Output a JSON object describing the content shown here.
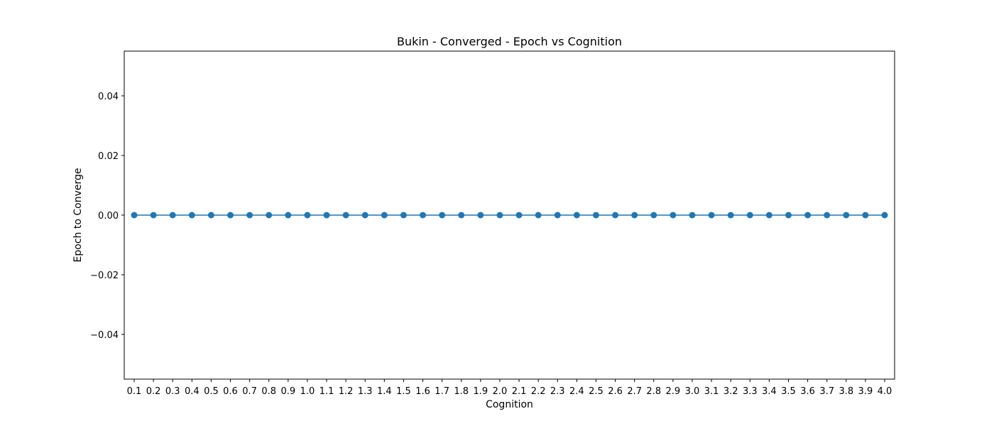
{
  "chart_data": {
    "type": "line",
    "title": "Bukin - Converged - Epoch vs Cognition",
    "xlabel": "Cognition",
    "ylabel": "Epoch to Converge",
    "x": [
      "0.1",
      "0.2",
      "0.3",
      "0.4",
      "0.5",
      "0.6",
      "0.7",
      "0.8",
      "0.9",
      "1.0",
      "1.1",
      "1.2",
      "1.3",
      "1.4",
      "1.5",
      "1.6",
      "1.7",
      "1.8",
      "1.9",
      "2.0",
      "2.1",
      "2.2",
      "2.3",
      "2.4",
      "2.5",
      "2.6",
      "2.7",
      "2.8",
      "2.9",
      "3.0",
      "3.1",
      "3.2",
      "3.3",
      "3.4",
      "3.5",
      "3.6",
      "3.7",
      "3.8",
      "3.9",
      "4.0"
    ],
    "series": [
      {
        "values": [
          0,
          0,
          0,
          0,
          0,
          0,
          0,
          0,
          0,
          0,
          0,
          0,
          0,
          0,
          0,
          0,
          0,
          0,
          0,
          0,
          0,
          0,
          0,
          0,
          0,
          0,
          0,
          0,
          0,
          0,
          0,
          0,
          0,
          0,
          0,
          0,
          0,
          0,
          0,
          0
        ],
        "color": "#1f77b4",
        "marker": "circle"
      }
    ],
    "ylim": [
      -0.055,
      0.055
    ],
    "yticks": [
      {
        "value": -0.04,
        "label": "−0.04"
      },
      {
        "value": -0.02,
        "label": "−0.02"
      },
      {
        "value": 0.0,
        "label": "0.00"
      },
      {
        "value": 0.02,
        "label": "0.02"
      },
      {
        "value": 0.04,
        "label": "0.04"
      }
    ],
    "grid": false,
    "legend": "none"
  }
}
